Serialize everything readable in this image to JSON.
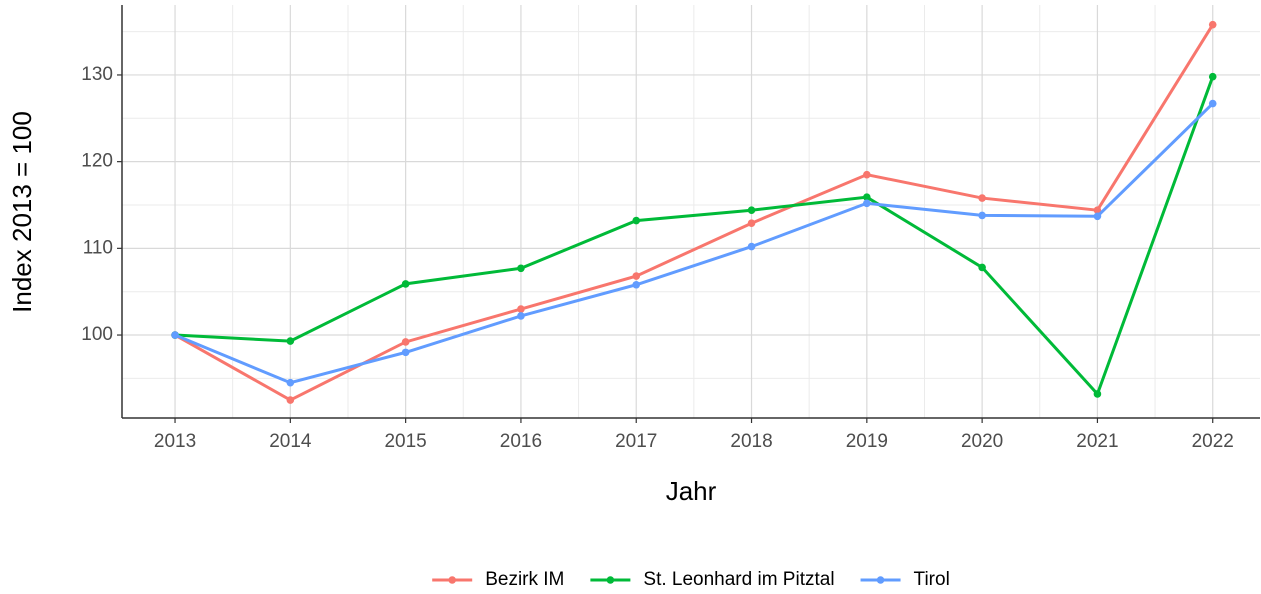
{
  "chart_data": {
    "type": "line",
    "x_label": "Jahr",
    "y_label": "Index  2013  = 100",
    "x": [
      2013,
      2014,
      2015,
      2016,
      2017,
      2018,
      2019,
      2020,
      2021,
      2022
    ],
    "series": [
      {
        "name": "Bezirk IM",
        "color": "#F8766D",
        "values": [
          100,
          92.5,
          99.2,
          103.0,
          106.8,
          112.9,
          118.5,
          115.8,
          114.4,
          135.8
        ]
      },
      {
        "name": "St. Leonhard im Pitztal",
        "color": "#00BA38",
        "values": [
          100,
          99.3,
          105.9,
          107.7,
          113.2,
          114.4,
          115.9,
          107.8,
          93.2,
          129.8
        ]
      },
      {
        "name": "Tirol",
        "color": "#619CFF",
        "values": [
          100,
          94.5,
          98.0,
          102.2,
          105.8,
          110.2,
          115.2,
          113.8,
          113.7,
          126.7
        ]
      }
    ],
    "xlim": [
      2012.54,
      2022.41
    ],
    "xticks": [
      2013,
      2014,
      2015,
      2016,
      2017,
      2018,
      2019,
      2020,
      2021,
      2022
    ],
    "ylim": [
      90.43,
      138.07
    ],
    "yticks": [
      100,
      110,
      120,
      130
    ],
    "grid": true,
    "legend": "bottom"
  }
}
